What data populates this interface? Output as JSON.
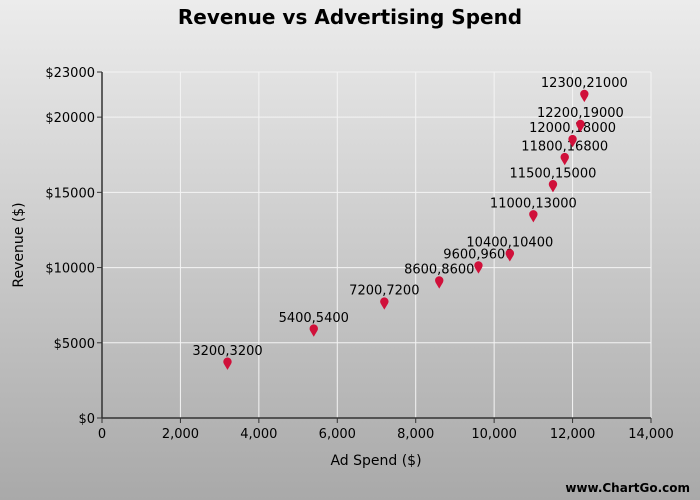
{
  "chart_data": {
    "type": "scatter",
    "title": "Revenue vs Advertising Spend",
    "xlabel": "Ad Spend ($)",
    "ylabel": "Revenue ($)",
    "xlim": [
      0,
      14000
    ],
    "ylim": [
      0,
      23000
    ],
    "xticks": [
      0,
      2000,
      4000,
      6000,
      8000,
      10000,
      12000,
      14000
    ],
    "xtick_labels": [
      "0",
      "2,000",
      "4,000",
      "6,000",
      "8,000",
      "10,000",
      "12,000",
      "14,000"
    ],
    "yticks": [
      0,
      5000,
      10000,
      15000,
      20000,
      23000
    ],
    "ytick_labels": [
      "$0",
      "$5000",
      "$10000",
      "$15000",
      "$20000",
      "$23000"
    ],
    "grid": true,
    "marker_color": "#d0103a",
    "points": [
      {
        "x": 3200,
        "y": 3200,
        "label": "3200,3200"
      },
      {
        "x": 5400,
        "y": 5400,
        "label": "5400,5400"
      },
      {
        "x": 7200,
        "y": 7200,
        "label": "7200,7200"
      },
      {
        "x": 8600,
        "y": 8600,
        "label": "8600,8600"
      },
      {
        "x": 9600,
        "y": 9600,
        "label": "9600,9600"
      },
      {
        "x": 10400,
        "y": 10400,
        "label": "10400,10400"
      },
      {
        "x": 11000,
        "y": 13000,
        "label": "11000,13000"
      },
      {
        "x": 11500,
        "y": 15000,
        "label": "11500,15000"
      },
      {
        "x": 11800,
        "y": 16800,
        "label": "11800,16800"
      },
      {
        "x": 12000,
        "y": 18000,
        "label": "12000,18000"
      },
      {
        "x": 12200,
        "y": 19000,
        "label": "12200,19000"
      },
      {
        "x": 12300,
        "y": 21000,
        "label": "12300,21000"
      }
    ]
  },
  "watermark": "www.ChartGo.com"
}
